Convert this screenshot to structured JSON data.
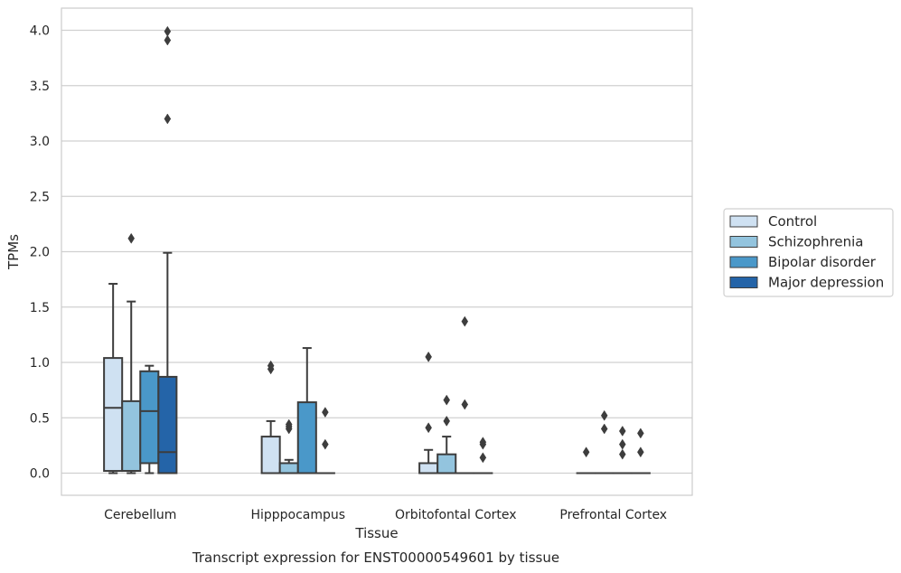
{
  "chart_data": {
    "type": "box",
    "xlabel": "Tissue",
    "ylabel": "TPMs",
    "caption": "Transcript expression for ENST00000549601 by tissue",
    "ylim": [
      -0.2,
      4.2
    ],
    "yticks": [
      "0.0",
      "0.5",
      "1.0",
      "1.5",
      "2.0",
      "2.5",
      "3.0",
      "3.5",
      "4.0"
    ],
    "grid": "horizontal",
    "legend_position": "right",
    "categories": [
      "Cerebellum",
      "Hipppocampus",
      "Orbitofontal Cortex",
      "Prefrontal Cortex"
    ],
    "series": [
      {
        "name": "Control",
        "color": "#cfe1f2",
        "boxes": [
          {
            "min": 0.0,
            "q1": 0.02,
            "median": 0.59,
            "q3": 1.04,
            "max": 1.71,
            "outliers": []
          },
          {
            "min": 0.0,
            "q1": 0.0,
            "median": 0.0,
            "q3": 0.33,
            "max": 0.47,
            "outliers": [
              0.94,
              0.97
            ]
          },
          {
            "min": 0.0,
            "q1": 0.0,
            "median": 0.0,
            "q3": 0.09,
            "max": 0.21,
            "outliers": [
              0.41,
              1.05
            ]
          },
          {
            "min": 0.0,
            "q1": 0.0,
            "median": 0.0,
            "q3": 0.0,
            "max": 0.0,
            "outliers": [
              0.19
            ]
          }
        ]
      },
      {
        "name": "Schizophrenia",
        "color": "#93c4de",
        "boxes": [
          {
            "min": 0.0,
            "q1": 0.02,
            "median": 0.02,
            "q3": 0.65,
            "max": 1.55,
            "outliers": [
              2.12
            ]
          },
          {
            "min": 0.0,
            "q1": 0.0,
            "median": 0.0,
            "q3": 0.09,
            "max": 0.12,
            "outliers": [
              0.4,
              0.42,
              0.44
            ]
          },
          {
            "min": 0.0,
            "q1": 0.0,
            "median": 0.0,
            "q3": 0.17,
            "max": 0.33,
            "outliers": [
              0.47,
              0.66
            ]
          },
          {
            "min": 0.0,
            "q1": 0.0,
            "median": 0.0,
            "q3": 0.0,
            "max": 0.0,
            "outliers": [
              0.4,
              0.52
            ]
          }
        ]
      },
      {
        "name": "Bipolar disorder",
        "color": "#4a98c9",
        "boxes": [
          {
            "min": 0.0,
            "q1": 0.09,
            "median": 0.56,
            "q3": 0.92,
            "max": 0.97,
            "outliers": []
          },
          {
            "min": 0.0,
            "q1": 0.0,
            "median": 0.0,
            "q3": 0.64,
            "max": 1.13,
            "outliers": []
          },
          {
            "min": 0.0,
            "q1": 0.0,
            "median": 0.0,
            "q3": 0.0,
            "max": 0.0,
            "outliers": [
              0.62,
              1.37
            ]
          },
          {
            "min": 0.0,
            "q1": 0.0,
            "median": 0.0,
            "q3": 0.0,
            "max": 0.0,
            "outliers": [
              0.17,
              0.26,
              0.38
            ]
          }
        ]
      },
      {
        "name": "Major depression",
        "color": "#2464a8",
        "boxes": [
          {
            "min": 0.0,
            "q1": 0.0,
            "median": 0.19,
            "q3": 0.87,
            "max": 1.99,
            "outliers": [
              3.2,
              3.91,
              3.99
            ]
          },
          {
            "min": 0.0,
            "q1": 0.0,
            "median": 0.0,
            "q3": 0.0,
            "max": 0.0,
            "outliers": [
              0.26,
              0.55
            ]
          },
          {
            "min": 0.0,
            "q1": 0.0,
            "median": 0.0,
            "q3": 0.0,
            "max": 0.0,
            "outliers": [
              0.14,
              0.26,
              0.28
            ]
          },
          {
            "min": 0.0,
            "q1": 0.0,
            "median": 0.0,
            "q3": 0.0,
            "max": 0.0,
            "outliers": [
              0.19,
              0.36
            ]
          }
        ]
      }
    ]
  }
}
